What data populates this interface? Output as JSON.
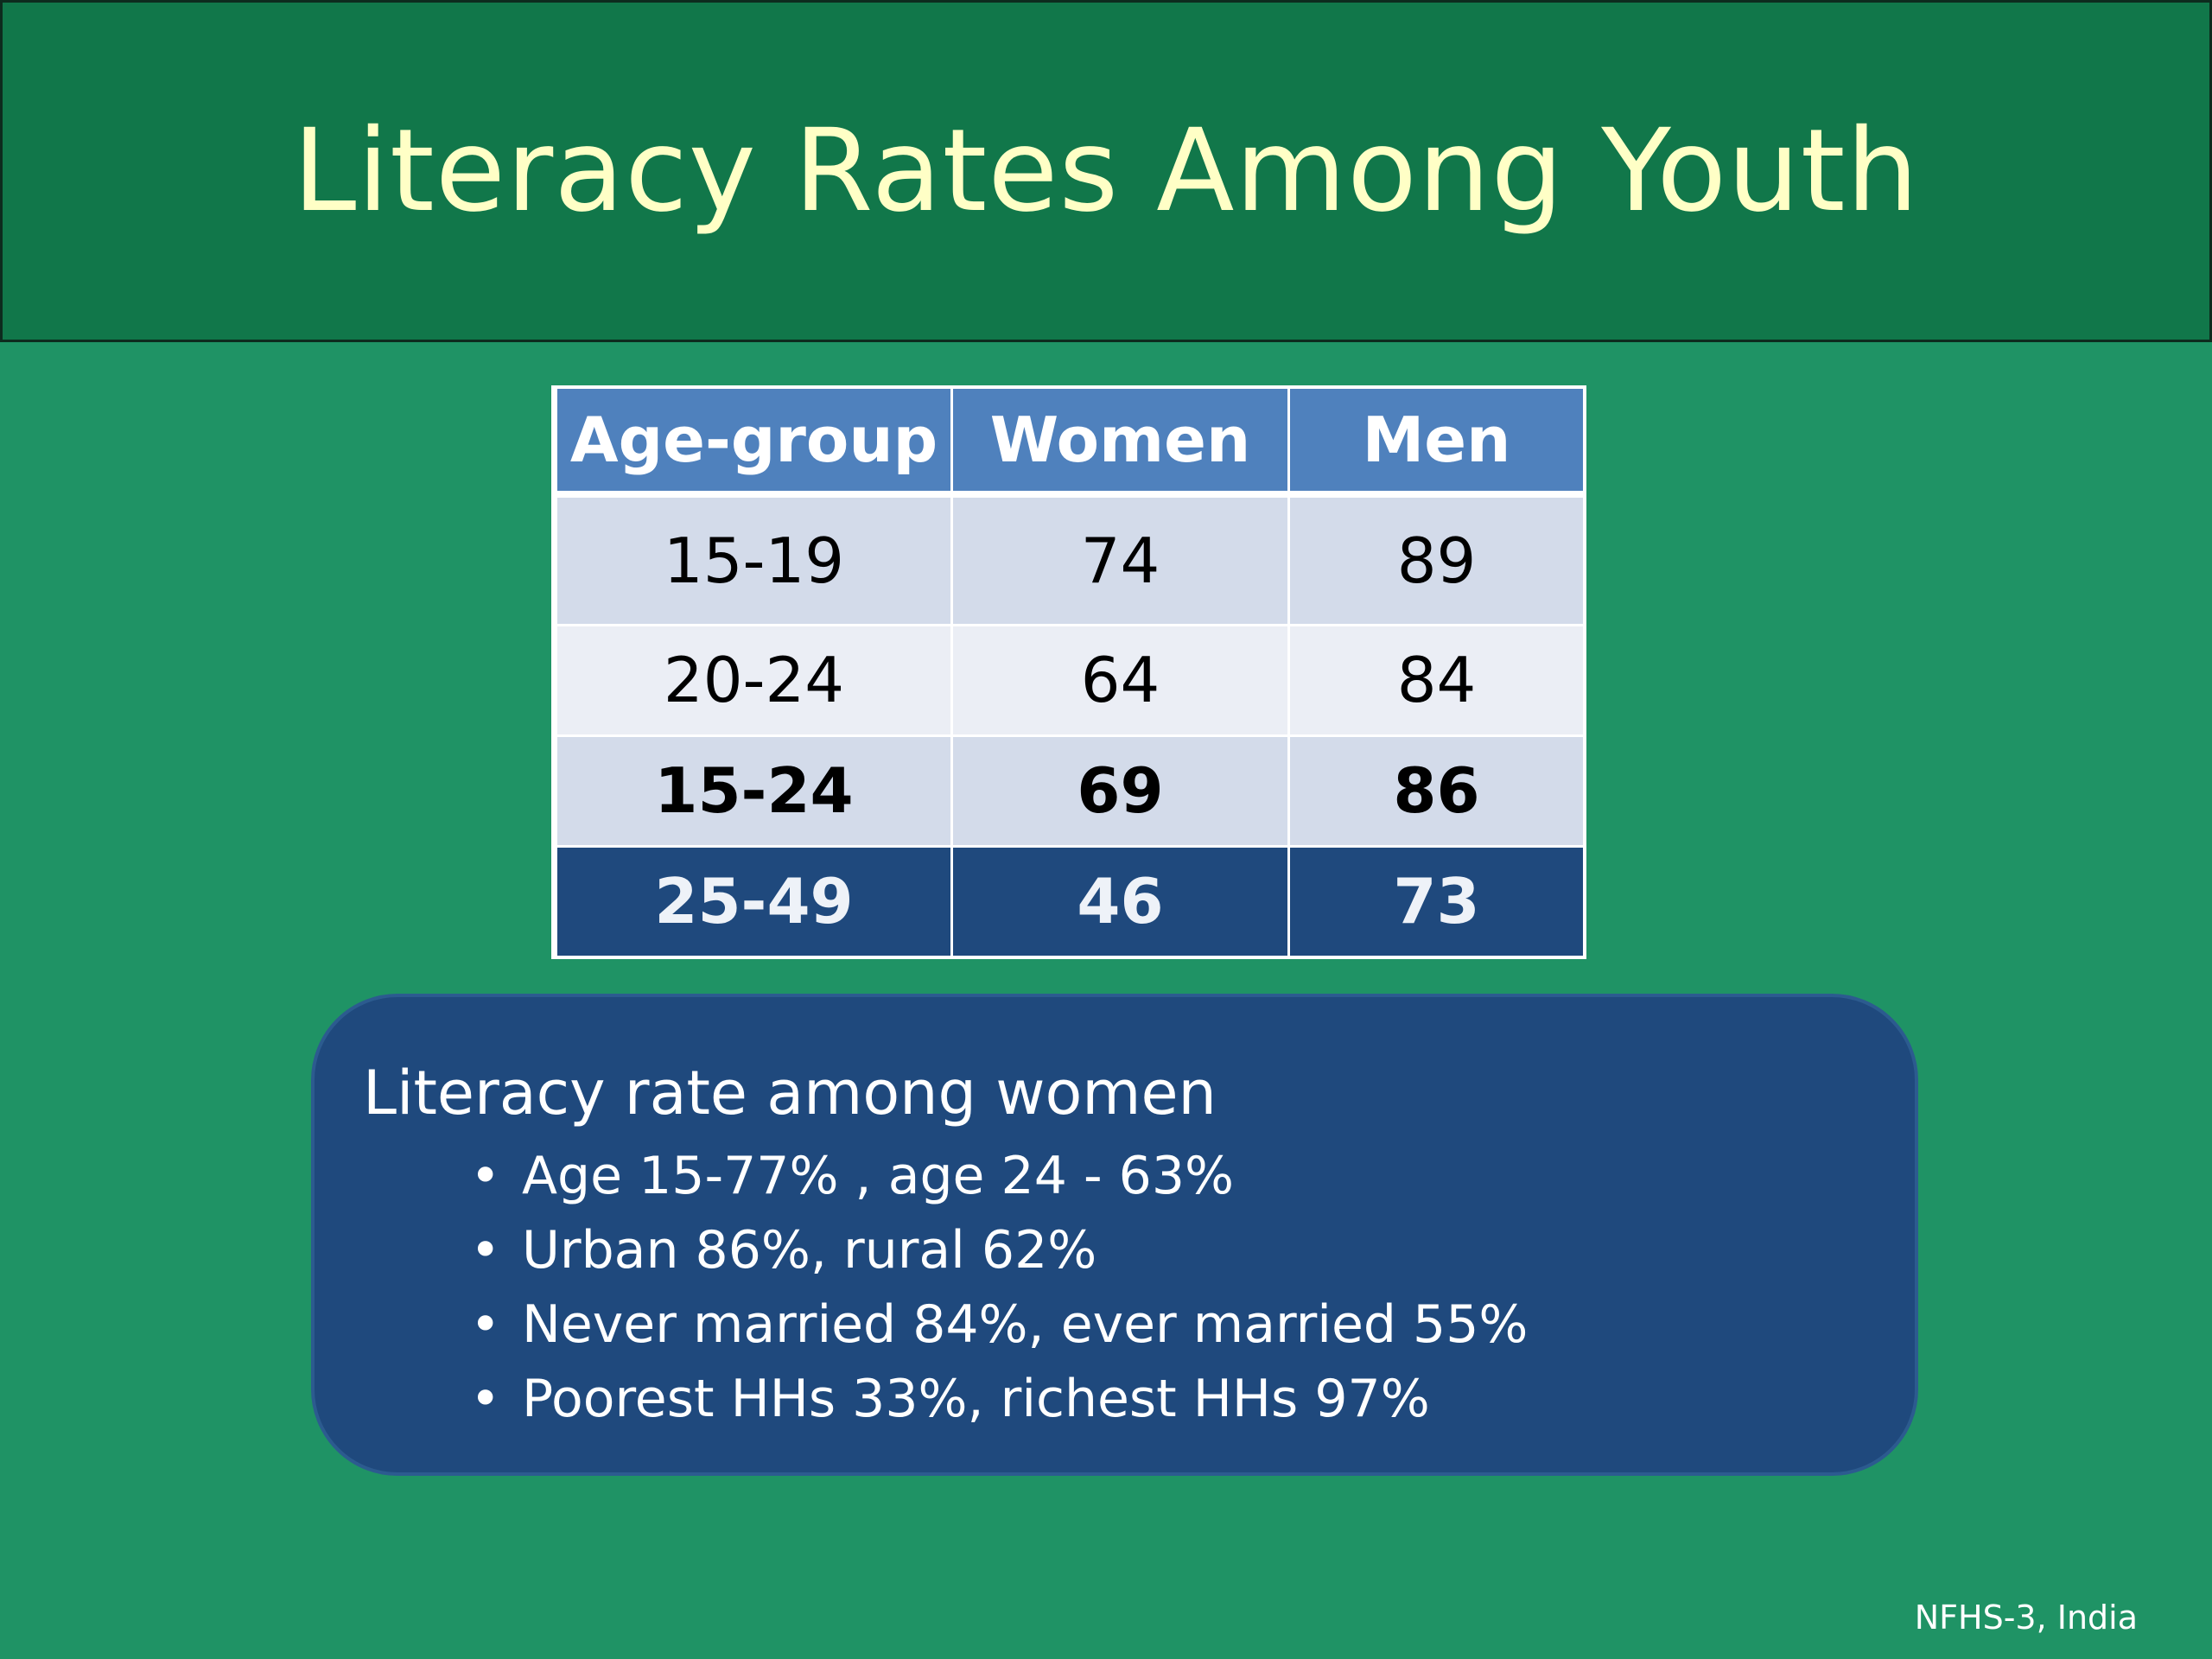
{
  "slide": {
    "title": "Literacy Rates Among Youth",
    "source": "NFHS-3, India"
  },
  "table": {
    "headers": [
      "Age-group",
      "Women",
      "Men"
    ],
    "rows": [
      [
        "15-19",
        "74",
        "89"
      ],
      [
        "20-24",
        "64",
        "84"
      ],
      [
        "15-24",
        "69",
        "86"
      ],
      [
        "25-49",
        "46",
        "73"
      ]
    ]
  },
  "note": {
    "heading": "Literacy rate among women",
    "bullet_glyph": "•",
    "items": [
      "Age 15-77% , age 24 - 63%",
      "Urban 86%, rural 62%",
      "Never married 84%, ever married 55%",
      "Poorest HHs 33%, richest HHs 97%"
    ]
  },
  "colors": {
    "background": "#1f9365",
    "title_bar": "#11774a",
    "title_text": "#ffffc6",
    "table_header": "#4f81bd",
    "table_row_dark": "#d3dbea",
    "table_row_light": "#ebeef5",
    "table_highlight": "#1f497d",
    "note_box": "#1f497d"
  }
}
